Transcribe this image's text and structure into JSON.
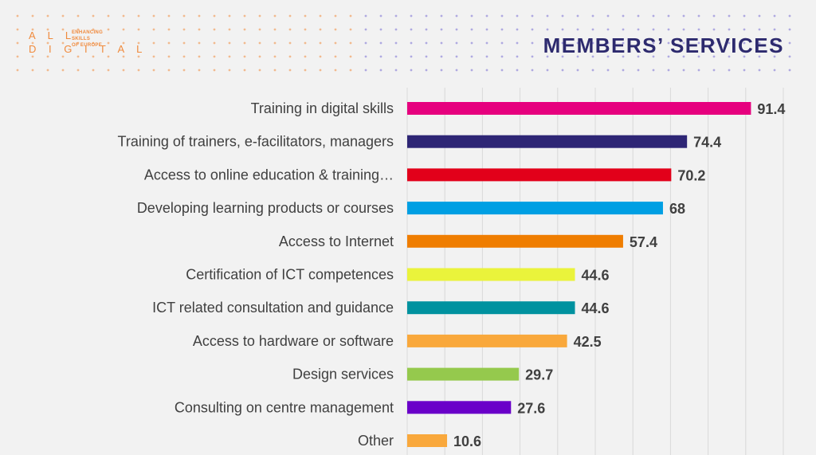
{
  "header": {
    "logo_main": "A L L\nD I G I T A L",
    "logo_tagline": "ENHANCING\nSKILLS\nOF EUROPE",
    "title": "MEMBERS’ SERVICES"
  },
  "colors": {
    "background": "#f2f2f2",
    "title": "#2d2a6e",
    "logo": "#f08a3c",
    "dots_left": "#f08a3c",
    "dots_right": "#6b5fcf"
  },
  "chart_data": {
    "type": "bar",
    "orientation": "horizontal",
    "title": "",
    "xlabel": "",
    "ylabel": "",
    "xlim": [
      0,
      100
    ],
    "grid": true,
    "legend": "none",
    "categories": [
      "Training in digital skills",
      "Training of trainers, e-facilitators, managers",
      "Access to online education & training…",
      "Developing learning products or courses",
      "Access to Internet",
      "Certification of ICT competences",
      "ICT related consultation and guidance",
      "Access to hardware or software",
      "Design services",
      "Consulting on centre management",
      "Other"
    ],
    "values": [
      91.4,
      74.4,
      70.2,
      68,
      57.4,
      44.6,
      44.6,
      42.5,
      29.7,
      27.6,
      10.6
    ],
    "value_labels": [
      "91.4",
      "74.4",
      "70.2",
      "68",
      "57.4",
      "44.6",
      "44.6",
      "42.5",
      "29.7",
      "27.6",
      "10.6"
    ],
    "bar_colors": [
      "#e6007e",
      "#2e2675",
      "#e2001a",
      "#009fe3",
      "#ef7d00",
      "#eaf33b",
      "#00929f",
      "#f9a83c",
      "#95c94d",
      "#6a00c9",
      "#f9a83c"
    ]
  }
}
